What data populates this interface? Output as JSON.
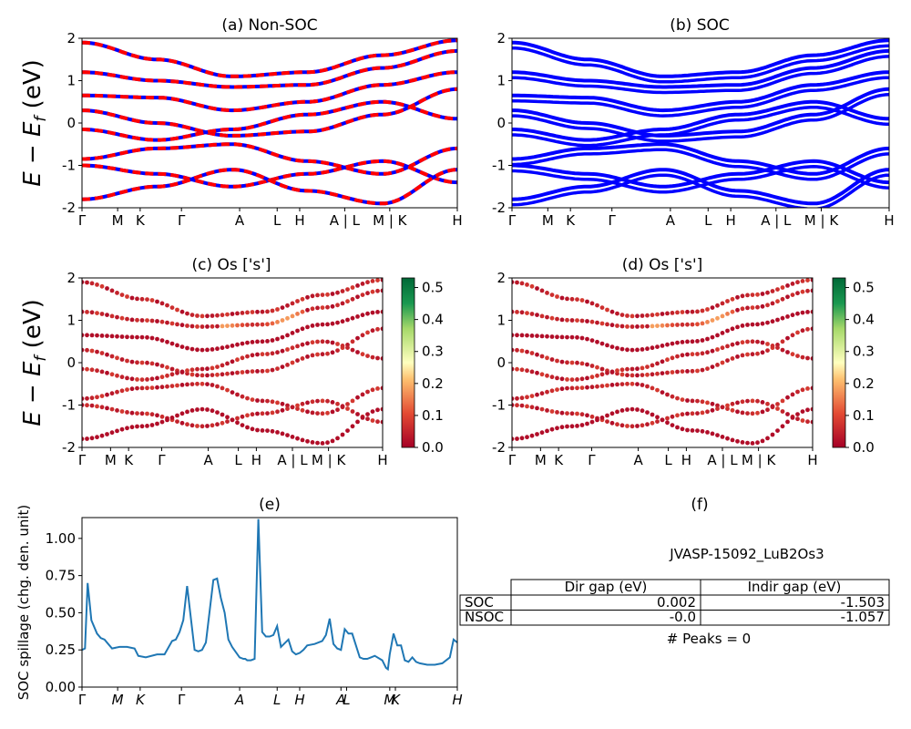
{
  "figure": {
    "ylabel_band": "E − E_f (eV)",
    "kpath": [
      "Γ",
      "M",
      "K",
      "Γ",
      "A",
      "L",
      "H",
      "A | L",
      "M | K",
      "H"
    ]
  },
  "panels": {
    "a": {
      "title": "(a) Non-SOC"
    },
    "b": {
      "title": "(b) SOC"
    },
    "c": {
      "title": "(c)  Os ['s']"
    },
    "d": {
      "title": "(d) Os ['s']"
    },
    "e": {
      "title": "(e)",
      "ylabel": "SOC spillage (chg. den. unit)"
    },
    "f": {
      "title": "(f)"
    }
  },
  "colorbar": {
    "ticks_c": [
      "0.0",
      "0.1",
      "0.2",
      "0.3",
      "0.4",
      "0.5"
    ],
    "ticks_d": [
      "0.0",
      "0.1",
      "0.2",
      "0.3",
      "0.4",
      "0.5"
    ]
  },
  "table": {
    "material": "JVASP-15092_LuB2Os3",
    "headers": [
      "Dir gap (eV)",
      "Indir gap (eV)"
    ],
    "rows": [
      {
        "label": "SOC",
        "dir": "0.002",
        "indir": "-1.503"
      },
      {
        "label": "NSOC",
        "dir": "-0.0",
        "indir": "-1.057"
      }
    ],
    "peaks": "# Peaks = 0"
  },
  "chart_data": [
    {
      "type": "line",
      "title": "(a) Non-SOC",
      "ylabel": "E − E_f (eV)",
      "ylim": [
        -2,
        2
      ],
      "yticks": [
        -2,
        -1,
        0,
        1,
        2
      ],
      "xticks": [
        "Γ",
        "M",
        "K",
        "Γ",
        "A",
        "L",
        "H",
        "A | L",
        "M | K",
        "H"
      ],
      "series": [
        {
          "values": [
            1.9,
            1.5,
            1.1,
            1.2,
            1.6,
            1.95
          ]
        },
        {
          "values": [
            1.2,
            1.0,
            0.85,
            0.9,
            1.3,
            1.7
          ]
        },
        {
          "values": [
            0.65,
            0.6,
            0.3,
            0.5,
            0.9,
            1.2
          ]
        },
        {
          "values": [
            0.3,
            0.0,
            -0.3,
            -0.2,
            0.2,
            0.8
          ]
        },
        {
          "values": [
            -0.15,
            -0.4,
            -0.15,
            0.2,
            0.5,
            0.1
          ]
        },
        {
          "values": [
            -0.85,
            -0.6,
            -0.5,
            -0.9,
            -1.2,
            -0.6
          ]
        },
        {
          "values": [
            -1.0,
            -1.2,
            -1.5,
            -1.2,
            -0.9,
            -1.4
          ]
        },
        {
          "values": [
            -1.8,
            -1.5,
            -1.1,
            -1.6,
            -1.9,
            -1.1
          ]
        }
      ]
    },
    {
      "type": "line",
      "title": "(b) SOC",
      "ylim": [
        -2,
        2
      ],
      "yticks": [
        -2,
        -1,
        0,
        1,
        2
      ],
      "xticks": [
        "Γ",
        "M",
        "K",
        "Γ",
        "A",
        "L",
        "H",
        "A | L",
        "M | K",
        "H"
      ],
      "series": [
        {
          "values": [
            1.9,
            1.5,
            1.1,
            1.2,
            1.6,
            1.95
          ]
        },
        {
          "values": [
            1.2,
            1.0,
            0.85,
            0.9,
            1.3,
            1.7
          ]
        },
        {
          "values": [
            0.65,
            0.6,
            0.3,
            0.5,
            0.9,
            1.2
          ]
        },
        {
          "values": [
            0.3,
            0.0,
            -0.3,
            -0.2,
            0.2,
            0.8
          ]
        },
        {
          "values": [
            -0.15,
            -0.4,
            -0.15,
            0.2,
            0.5,
            0.1
          ]
        },
        {
          "values": [
            -0.85,
            -0.6,
            -0.5,
            -0.9,
            -1.2,
            -0.6
          ]
        },
        {
          "values": [
            -1.0,
            -1.2,
            -1.5,
            -1.2,
            -0.9,
            -1.4
          ]
        },
        {
          "values": [
            -1.8,
            -1.5,
            -1.1,
            -1.6,
            -1.9,
            -1.1
          ]
        }
      ]
    },
    {
      "type": "scatter",
      "title": "(c)  Os ['s']",
      "ylabel": "E − E_f (eV)",
      "ylim": [
        -2,
        2
      ],
      "yticks": [
        -2,
        -1,
        0,
        1,
        2
      ],
      "xticks": [
        "Γ",
        "M",
        "K",
        "Γ",
        "A",
        "L",
        "H",
        "A | L",
        "M | K",
        "H"
      ],
      "colorbar_range": [
        0.0,
        0.53
      ],
      "series": [
        {
          "values": [
            1.9,
            1.5,
            1.1,
            1.2,
            1.6,
            1.95
          ]
        },
        {
          "values": [
            1.2,
            1.0,
            0.85,
            0.9,
            1.3,
            1.7
          ]
        },
        {
          "values": [
            0.65,
            0.6,
            0.3,
            0.5,
            0.9,
            1.2
          ]
        },
        {
          "values": [
            0.3,
            0.0,
            -0.3,
            -0.2,
            0.2,
            0.8
          ]
        },
        {
          "values": [
            -0.15,
            -0.4,
            -0.15,
            0.2,
            0.5,
            0.1
          ]
        },
        {
          "values": [
            -0.85,
            -0.6,
            -0.5,
            -0.9,
            -1.2,
            -0.6
          ]
        },
        {
          "values": [
            -1.0,
            -1.2,
            -1.5,
            -1.2,
            -0.9,
            -1.4
          ]
        },
        {
          "values": [
            -1.8,
            -1.5,
            -1.1,
            -1.6,
            -1.9,
            -1.1
          ]
        }
      ]
    },
    {
      "type": "scatter",
      "title": "(d) Os ['s']",
      "ylim": [
        -2,
        2
      ],
      "yticks": [
        -2,
        -1,
        0,
        1,
        2
      ],
      "xticks": [
        "Γ",
        "M",
        "K",
        "Γ",
        "A",
        "L",
        "H",
        "A | L",
        "M | K",
        "H"
      ],
      "colorbar_range": [
        0.0,
        0.52
      ],
      "series": [
        {
          "values": [
            1.9,
            1.5,
            1.1,
            1.2,
            1.6,
            1.95
          ]
        },
        {
          "values": [
            1.2,
            1.0,
            0.85,
            0.9,
            1.3,
            1.7
          ]
        },
        {
          "values": [
            0.65,
            0.6,
            0.3,
            0.5,
            0.9,
            1.2
          ]
        },
        {
          "values": [
            0.3,
            0.0,
            -0.3,
            -0.2,
            0.2,
            0.8
          ]
        },
        {
          "values": [
            -0.15,
            -0.4,
            -0.15,
            0.2,
            0.5,
            0.1
          ]
        },
        {
          "values": [
            -0.85,
            -0.6,
            -0.5,
            -0.9,
            -1.2,
            -0.6
          ]
        },
        {
          "values": [
            -1.0,
            -1.2,
            -1.5,
            -1.2,
            -0.9,
            -1.4
          ]
        },
        {
          "values": [
            -1.8,
            -1.5,
            -1.1,
            -1.6,
            -1.9,
            -1.1
          ]
        }
      ]
    },
    {
      "type": "line",
      "title": "(e)",
      "ylabel": "SOC spillage (chg. den. unit)",
      "ylim": [
        0,
        1.14
      ],
      "yticks": [
        "0.00",
        "0.25",
        "0.50",
        "0.75",
        "1.00"
      ],
      "xticks": [
        "Γ",
        "M",
        "K",
        "Γ",
        "A",
        "L",
        "H",
        "A",
        "L",
        "M",
        "K",
        "H"
      ],
      "x": [
        0,
        0.008,
        0.015,
        0.025,
        0.04,
        0.05,
        0.06,
        0.08,
        0.1,
        0.12,
        0.14,
        0.15,
        0.17,
        0.2,
        0.22,
        0.24,
        0.25,
        0.26,
        0.27,
        0.28,
        0.3,
        0.31,
        0.32,
        0.33,
        0.35,
        0.36,
        0.37,
        0.38,
        0.39,
        0.4,
        0.42,
        0.43,
        0.435,
        0.44,
        0.45,
        0.46,
        0.47,
        0.48,
        0.49,
        0.5,
        0.51,
        0.52,
        0.53,
        0.55,
        0.56,
        0.57,
        0.58,
        0.59,
        0.6,
        0.62,
        0.64,
        0.65,
        0.66,
        0.67,
        0.68,
        0.69,
        0.7,
        0.71,
        0.72,
        0.74,
        0.75,
        0.76,
        0.77,
        0.78,
        0.8,
        0.81,
        0.815,
        0.82,
        0.83,
        0.84,
        0.85,
        0.86,
        0.87,
        0.88,
        0.89,
        0.9,
        0.92,
        0.94,
        0.96,
        0.98,
        0.99,
        1.0
      ],
      "values": [
        0.25,
        0.26,
        0.7,
        0.45,
        0.36,
        0.33,
        0.32,
        0.26,
        0.27,
        0.27,
        0.26,
        0.21,
        0.2,
        0.22,
        0.22,
        0.31,
        0.32,
        0.37,
        0.45,
        0.68,
        0.25,
        0.24,
        0.25,
        0.3,
        0.72,
        0.73,
        0.6,
        0.5,
        0.32,
        0.27,
        0.2,
        0.19,
        0.19,
        0.18,
        0.18,
        0.19,
        1.13,
        0.37,
        0.34,
        0.34,
        0.35,
        0.41,
        0.27,
        0.32,
        0.24,
        0.22,
        0.23,
        0.25,
        0.28,
        0.29,
        0.31,
        0.35,
        0.46,
        0.29,
        0.26,
        0.25,
        0.39,
        0.36,
        0.36,
        0.2,
        0.19,
        0.19,
        0.2,
        0.21,
        0.18,
        0.13,
        0.12,
        0.22,
        0.36,
        0.28,
        0.28,
        0.18,
        0.17,
        0.2,
        0.17,
        0.16,
        0.15,
        0.15,
        0.16,
        0.2,
        0.32,
        0.3
      ]
    }
  ]
}
